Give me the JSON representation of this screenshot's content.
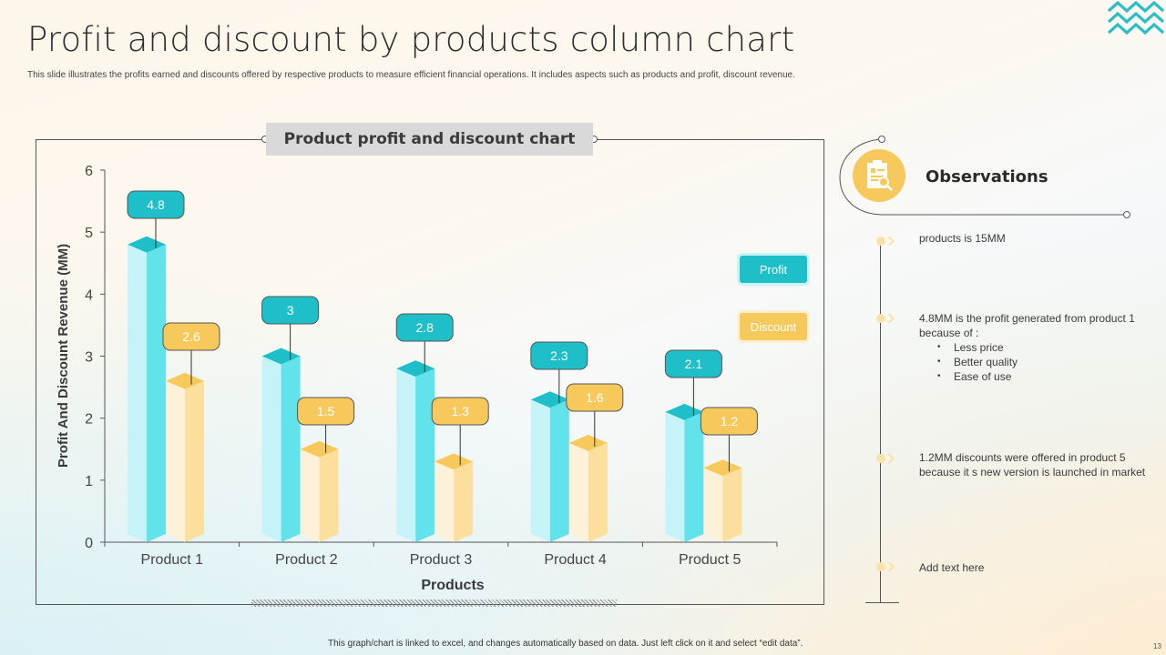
{
  "slide": {
    "title": "Profit and discount by products column chart",
    "subtitle": "This slide illustrates the profits earned and discounts offered by respective products to measure efficient financial operations. It includes aspects such as products and profit, discount revenue.",
    "footer_note": "This graph/chart is linked to excel, and changes automatically based on data. Just left click on it and select “edit data”.",
    "slide_number": "13",
    "decor_icon": "zigzag-waves-icon"
  },
  "colors": {
    "profit": "#1fbfc9",
    "profit_light": "#c6f3f7",
    "profit_mid": "#62e2ea",
    "discount": "#f7c95c",
    "discount_light": "#fdf1da",
    "discount_mid": "#fcdf9c",
    "accent_teal": "#2bbfc3"
  },
  "chart_panel": {
    "title": "Product profit and discount chart"
  },
  "legend": {
    "profit_label": "Profit",
    "discount_label": "Discount"
  },
  "chart_data": {
    "type": "bar",
    "title": "Product profit and discount chart",
    "xlabel": "Products",
    "ylabel": "Profit And Discount  Revenue (MM)",
    "categories": [
      "Product 1",
      "Product 2",
      "Product 3",
      "Product 4",
      "Product 5"
    ],
    "series": [
      {
        "name": "Profit",
        "values": [
          4.8,
          3,
          2.8,
          2.3,
          2.1
        ]
      },
      {
        "name": "Discount",
        "values": [
          2.6,
          1.5,
          1.3,
          1.6,
          1.2
        ]
      }
    ],
    "ylim": [
      0,
      6
    ],
    "yticks": [
      "0",
      "1",
      "2",
      "3",
      "4",
      "5",
      "6"
    ],
    "grid": false,
    "legend_position": "right",
    "style": "3d-column with data-label callouts"
  },
  "observations": {
    "title": "Observations",
    "icon": "clipboard-search-icon",
    "items": [
      {
        "text": "products is 15MM"
      },
      {
        "text": "4.8MM is the profit generated from product 1 because of :",
        "bullets": [
          "Less price",
          "Better quality",
          "Ease of use"
        ]
      },
      {
        "text": "1.2MM discounts were offered  in product 5 because  it s new version  is launched in market"
      },
      {
        "text": "Add text here"
      }
    ]
  }
}
